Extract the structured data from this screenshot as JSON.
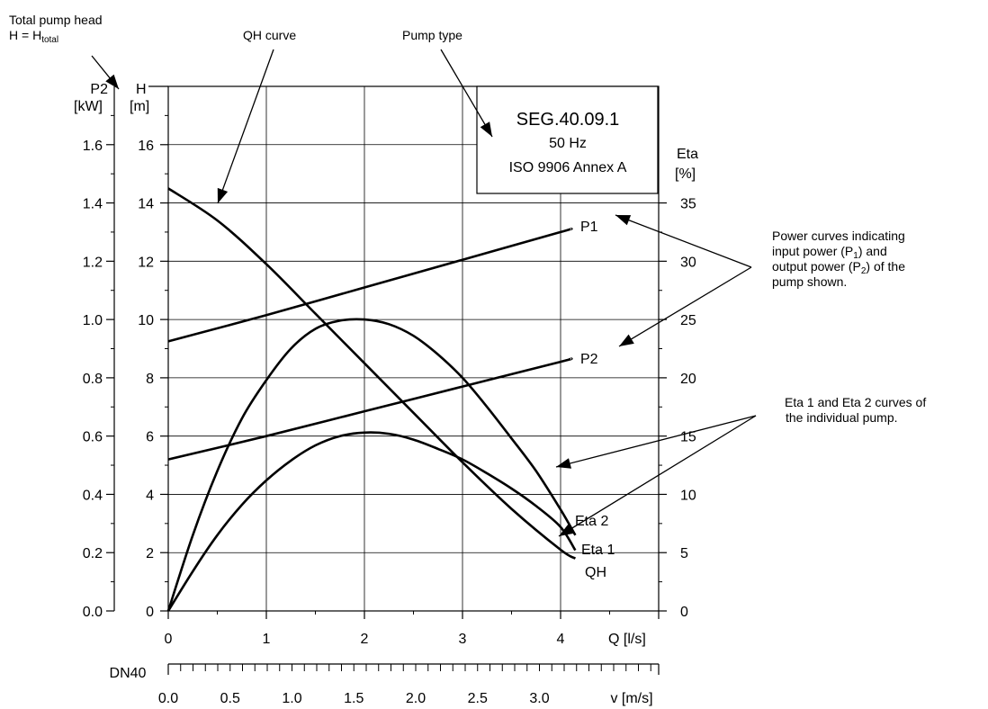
{
  "chart_data": {
    "type": "line",
    "title": "",
    "x_axis": {
      "label": "Q [l/s]",
      "range": [
        0,
        5
      ],
      "ticks": [
        0,
        1,
        2,
        3,
        4
      ]
    },
    "velocity_axis": {
      "prefix": "DN40",
      "label": "v [m/s]",
      "ticks": [
        "0.0",
        "0.5",
        "1.0",
        "1.5",
        "2.0",
        "2.5",
        "3.0"
      ]
    },
    "y_axis_head": {
      "unit_top": "H",
      "unit_bottom": "[m]",
      "range": [
        0,
        18
      ],
      "ticks": [
        0,
        2,
        4,
        6,
        8,
        10,
        12,
        14,
        16
      ]
    },
    "y_axis_power": {
      "unit_top": "P2",
      "unit_bottom": "[kW]",
      "range": [
        0,
        1.8
      ],
      "ticks": [
        "0.0",
        "0.2",
        "0.4",
        "0.6",
        "0.8",
        "1.0",
        "1.2",
        "1.4",
        "1.6"
      ]
    },
    "y_axis_eta": {
      "unit_top": "Eta",
      "unit_bottom": "[%]",
      "range": [
        0,
        45
      ],
      "ticks": [
        0,
        5,
        10,
        15,
        20,
        25,
        30,
        35
      ]
    },
    "grid": true,
    "series": [
      {
        "name": "QH",
        "axis": "head",
        "label_text": "QH",
        "x": [
          0,
          0.5,
          1,
          1.5,
          2,
          2.5,
          3,
          3.5,
          4,
          4.15
        ],
        "y": [
          14.5,
          13.4,
          11.9,
          10.2,
          8.5,
          6.8,
          5.1,
          3.5,
          2.1,
          1.8
        ]
      },
      {
        "name": "Eta 1",
        "axis": "eta",
        "label_text": "Eta 1",
        "x": [
          0,
          0.25,
          0.5,
          0.75,
          1,
          1.25,
          1.5,
          1.75,
          2,
          2.25,
          2.5,
          2.75,
          3,
          3.25,
          3.5,
          3.75,
          4,
          4.15
        ],
        "y": [
          0,
          3.4,
          6.5,
          9.1,
          11.2,
          12.9,
          14.2,
          15.0,
          15.3,
          15.2,
          14.7,
          13.9,
          13.0,
          11.8,
          10.5,
          9.0,
          7.2,
          5.2
        ]
      },
      {
        "name": "Eta 2",
        "axis": "eta",
        "label_text": "Eta 2",
        "x": [
          0,
          0.25,
          0.5,
          0.75,
          1,
          1.25,
          1.5,
          1.75,
          2,
          2.25,
          2.5,
          2.75,
          3,
          3.25,
          3.5,
          3.75,
          4,
          4.15
        ],
        "y": [
          0,
          6.5,
          12.0,
          16.5,
          19.8,
          22.5,
          24.2,
          24.9,
          25.0,
          24.6,
          23.6,
          22.0,
          20.0,
          17.5,
          14.8,
          12.0,
          8.7,
          6.5
        ]
      },
      {
        "name": "P1",
        "axis": "power",
        "label_text": "P1",
        "x": [
          0,
          1,
          2,
          3,
          4,
          4.1
        ],
        "y": [
          0.925,
          1.015,
          1.11,
          1.205,
          1.3,
          1.31
        ]
      },
      {
        "name": "P2",
        "axis": "power",
        "label_text": "P2",
        "x": [
          0,
          1,
          2,
          3,
          4,
          4.1
        ],
        "y": [
          0.52,
          0.6,
          0.685,
          0.77,
          0.855,
          0.865
        ]
      }
    ],
    "info_box": {
      "line1": "SEG.40.09.1",
      "line2": "50 Hz",
      "line3": "ISO 9906 Annex A"
    }
  },
  "annotations": {
    "head_label_line1": "Total pump head",
    "head_label_line2_prefix": "H = H",
    "head_label_line2_sub": "total",
    "qh_curve": "QH curve",
    "pump_type": "Pump type",
    "power_line1": "Power curves indicating",
    "power_line2_prefix": "input power (P",
    "power_line2_sub": "1",
    "power_line2_suffix": ") and",
    "power_line3_prefix": "output power (P",
    "power_line3_sub": "2",
    "power_line3_suffix": ") of the",
    "power_line4": "pump shown.",
    "eta_line1": "Eta 1 and Eta 2 curves of",
    "eta_line2": "the individual pump."
  }
}
